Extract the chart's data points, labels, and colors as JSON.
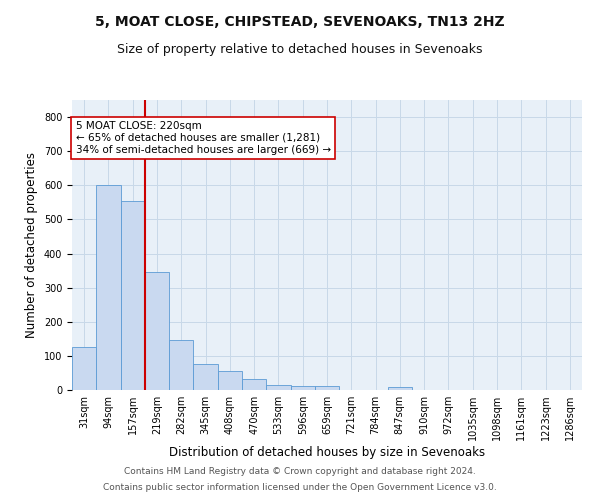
{
  "title": "5, MOAT CLOSE, CHIPSTEAD, SEVENOAKS, TN13 2HZ",
  "subtitle": "Size of property relative to detached houses in Sevenoaks",
  "xlabel": "Distribution of detached houses by size in Sevenoaks",
  "ylabel": "Number of detached properties",
  "categories": [
    "31sqm",
    "94sqm",
    "157sqm",
    "219sqm",
    "282sqm",
    "345sqm",
    "408sqm",
    "470sqm",
    "533sqm",
    "596sqm",
    "659sqm",
    "721sqm",
    "784sqm",
    "847sqm",
    "910sqm",
    "972sqm",
    "1035sqm",
    "1098sqm",
    "1161sqm",
    "1223sqm",
    "1286sqm"
  ],
  "values": [
    125,
    602,
    555,
    347,
    148,
    75,
    55,
    32,
    15,
    13,
    13,
    0,
    0,
    8,
    0,
    0,
    0,
    0,
    0,
    0,
    0
  ],
  "bar_color": "#c9d9f0",
  "bar_edge_color": "#5b9bd5",
  "vline_x_idx": 3,
  "vline_color": "#cc0000",
  "annotation_text": "5 MOAT CLOSE: 220sqm\n← 65% of detached houses are smaller (1,281)\n34% of semi-detached houses are larger (669) →",
  "annotation_box_color": "#ffffff",
  "annotation_box_edge": "#cc0000",
  "ylim": [
    0,
    850
  ],
  "yticks": [
    0,
    100,
    200,
    300,
    400,
    500,
    600,
    700,
    800
  ],
  "footer1": "Contains HM Land Registry data © Crown copyright and database right 2024.",
  "footer2": "Contains public sector information licensed under the Open Government Licence v3.0.",
  "bg_color": "#ffffff",
  "plot_bg_color": "#e8f0f8",
  "grid_color": "#c8d8e8",
  "title_fontsize": 10,
  "subtitle_fontsize": 9,
  "axis_label_fontsize": 8.5,
  "tick_fontsize": 7,
  "annotation_fontsize": 7.5,
  "footer_fontsize": 6.5
}
